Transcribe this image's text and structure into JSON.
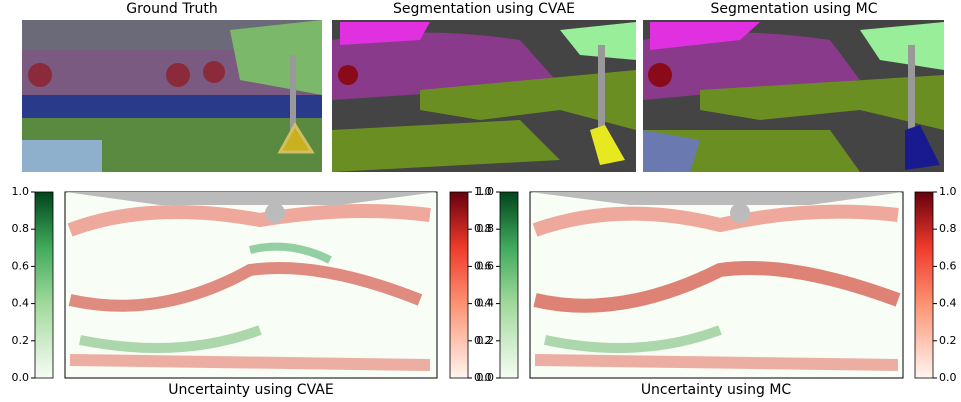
{
  "panels": {
    "top": [
      {
        "title": "Ground Truth"
      },
      {
        "title": "Segmentation using CVAE"
      },
      {
        "title": "Segmentation using MC"
      }
    ],
    "bottom": [
      {
        "caption": "Uncertainty using CVAE"
      },
      {
        "caption": "Uncertainty using MC"
      }
    ]
  },
  "colorbar": {
    "ylim": [
      0,
      1
    ],
    "yticks": [
      {
        "value": 0,
        "label": "0.0"
      },
      {
        "value": 0.2,
        "label": "0.2"
      },
      {
        "value": 0.4,
        "label": "0.4"
      },
      {
        "value": 0.6,
        "label": "0.6"
      },
      {
        "value": 0.8,
        "label": "0.8"
      },
      {
        "value": 1,
        "label": "1.0"
      }
    ]
  }
}
